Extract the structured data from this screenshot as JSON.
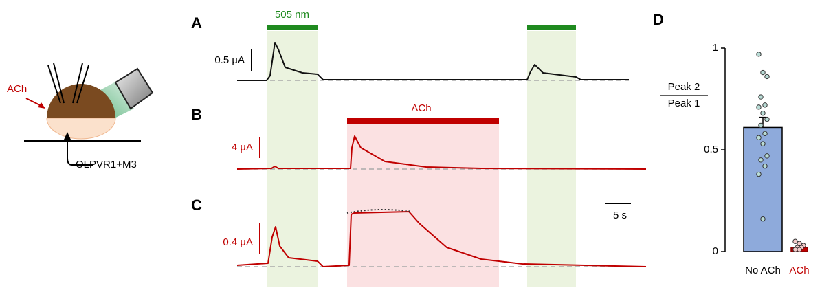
{
  "figure": {
    "schematic": {
      "ach_label": "ACh",
      "construct_label": "OLPVR1+M3"
    },
    "panel_a": {
      "letter": "A",
      "stimulus_label": "505 nm",
      "scale_label": "0.5 µA"
    },
    "panel_b": {
      "letter": "B",
      "stimulus_label": "ACh",
      "scale_label": "4 µA"
    },
    "panel_c": {
      "letter": "C",
      "scale_label": "0.4 µA",
      "time_scale_label": "5 s"
    }
  },
  "chart_data": {
    "type": "bar",
    "letter": "D",
    "ylabel_top": "Peak 2",
    "ylabel_bottom": "Peak 1",
    "categories": [
      "No ACh",
      "ACh"
    ],
    "values": [
      0.61,
      0.02
    ],
    "errors": [
      0.05,
      0.01
    ],
    "colors": [
      "#8eaadb",
      "#c00000"
    ],
    "label_colors": [
      "#000000",
      "#c00000"
    ],
    "points": [
      [
        0.97,
        0.88,
        0.86,
        0.76,
        0.72,
        0.71,
        0.68,
        0.65,
        0.62,
        0.58,
        0.56,
        0.53,
        0.47,
        0.45,
        0.42,
        0.38,
        0.16
      ],
      [
        0.05,
        0.04,
        0.03,
        0.02,
        0.02,
        0.01,
        0.01
      ]
    ],
    "ylim": [
      0,
      1
    ],
    "yticks": [
      0,
      0.5,
      1
    ]
  }
}
